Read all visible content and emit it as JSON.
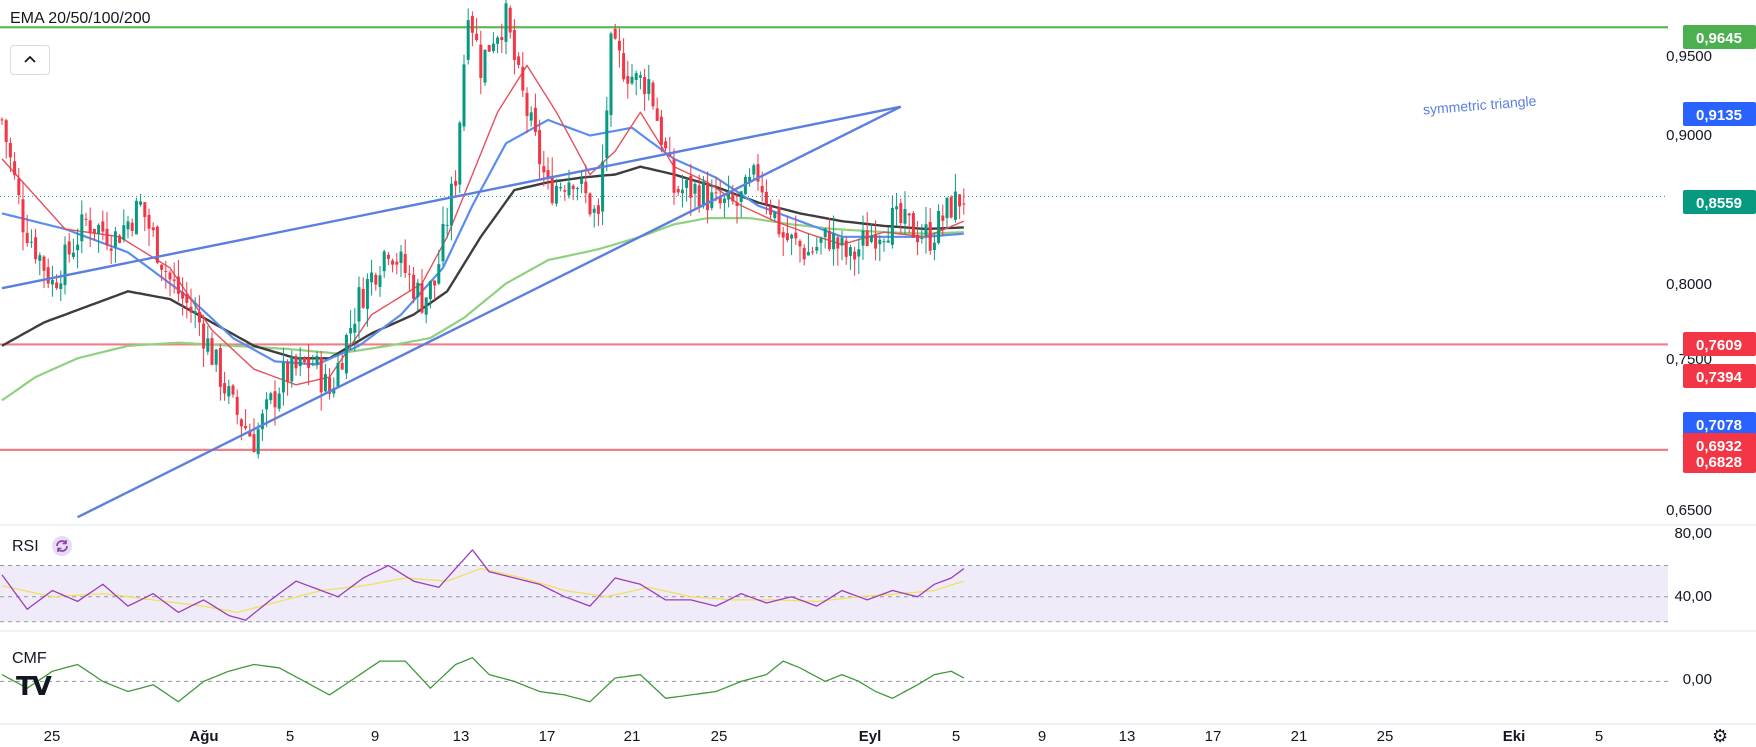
{
  "indicator_label": "EMA 20/50/100/200",
  "rsi_label": "RSI",
  "cmf_label": "CMF",
  "colors": {
    "candle_up": "#089981",
    "candle_down": "#f23645",
    "ema20": "#e5515d",
    "ema50": "#5b8def",
    "ema100": "#3d3d3d",
    "ema200": "#8fd17e",
    "trendline": "#5b7fe0",
    "resistance_green": "#5fb85a",
    "support_red": "#ee7f87",
    "rsi_line": "#9c3cba",
    "rsi_ma": "#f0e060",
    "cmf_line": "#3f9a3a"
  },
  "annotation": "symmetric triangle",
  "price_axis": {
    "ticks": [
      "0,9500",
      "0,9000",
      "0,8000",
      "0,7500",
      "0,6500"
    ],
    "labels": [
      {
        "text": "0,9645",
        "color": "#4caf50"
      },
      {
        "text": "0,9135",
        "color": "#2962ff"
      },
      {
        "text": "0,8559",
        "color": "#089981"
      },
      {
        "text": "0,7609",
        "color": "#f23645"
      },
      {
        "text": "0,7394",
        "color": "#f23645"
      },
      {
        "text": "0,7078",
        "color": "#2962ff"
      },
      {
        "text": "0,6932",
        "color": "#f23645"
      },
      {
        "text": "0,6828",
        "color": "#f23645"
      }
    ]
  },
  "rsi_axis": [
    "80,00",
    "40,00"
  ],
  "cmf_axis": [
    "0,00"
  ],
  "time_axis": [
    "25",
    "Ağu",
    "5",
    "9",
    "13",
    "17",
    "21",
    "25",
    "Eyl",
    "5",
    "9",
    "13",
    "17",
    "21",
    "25",
    "Eki",
    "5"
  ],
  "chart_data": {
    "type": "candlestick",
    "ylim": [
      0.6469,
      0.982
    ],
    "last_price": 0.8559,
    "close_path": [
      [
        0,
        0.905
      ],
      [
        5,
        0.84
      ],
      [
        12,
        0.8
      ],
      [
        20,
        0.84
      ],
      [
        27,
        0.83
      ],
      [
        33,
        0.85
      ],
      [
        40,
        0.802
      ],
      [
        47,
        0.775
      ],
      [
        55,
        0.72
      ],
      [
        60,
        0.7
      ],
      [
        67,
        0.74
      ],
      [
        74,
        0.75
      ],
      [
        78,
        0.73
      ],
      [
        85,
        0.79
      ],
      [
        92,
        0.825
      ],
      [
        100,
        0.79
      ],
      [
        103,
        0.8
      ],
      [
        108,
        0.87
      ],
      [
        111,
        0.98
      ],
      [
        114,
        0.94
      ],
      [
        117,
        0.96
      ],
      [
        120,
        0.97
      ],
      [
        123,
        0.93
      ],
      [
        130,
        0.86
      ],
      [
        136,
        0.87
      ],
      [
        142,
        0.84
      ],
      [
        145,
        0.95
      ],
      [
        151,
        0.93
      ],
      [
        154,
        0.93
      ],
      [
        160,
        0.86
      ],
      [
        166,
        0.86
      ],
      [
        170,
        0.85
      ],
      [
        175,
        0.85
      ],
      [
        180,
        0.87
      ],
      [
        186,
        0.83
      ],
      [
        192,
        0.82
      ],
      [
        197,
        0.83
      ],
      [
        202,
        0.815
      ],
      [
        206,
        0.83
      ],
      [
        212,
        0.84
      ],
      [
        217,
        0.835
      ],
      [
        221,
        0.83
      ],
      [
        226,
        0.85
      ],
      [
        229,
        0.856
      ]
    ],
    "ema_paths": {
      "ema20": [
        [
          0,
          0.88
        ],
        [
          15,
          0.835
        ],
        [
          28,
          0.83
        ],
        [
          40,
          0.81
        ],
        [
          50,
          0.77
        ],
        [
          60,
          0.745
        ],
        [
          70,
          0.735
        ],
        [
          78,
          0.74
        ],
        [
          88,
          0.78
        ],
        [
          100,
          0.8
        ],
        [
          106,
          0.83
        ],
        [
          112,
          0.87
        ],
        [
          118,
          0.91
        ],
        [
          125,
          0.94
        ],
        [
          132,
          0.91
        ],
        [
          140,
          0.87
        ],
        [
          146,
          0.885
        ],
        [
          152,
          0.91
        ],
        [
          160,
          0.875
        ],
        [
          168,
          0.865
        ],
        [
          176,
          0.85
        ],
        [
          184,
          0.84
        ],
        [
          192,
          0.832
        ],
        [
          200,
          0.825
        ],
        [
          210,
          0.833
        ],
        [
          220,
          0.83
        ],
        [
          229,
          0.84
        ]
      ],
      "ema50": [
        [
          0,
          0.845
        ],
        [
          15,
          0.835
        ],
        [
          30,
          0.82
        ],
        [
          45,
          0.79
        ],
        [
          55,
          0.765
        ],
        [
          65,
          0.75
        ],
        [
          75,
          0.748
        ],
        [
          85,
          0.76
        ],
        [
          95,
          0.78
        ],
        [
          105,
          0.81
        ],
        [
          112,
          0.85
        ],
        [
          120,
          0.89
        ],
        [
          130,
          0.905
        ],
        [
          140,
          0.895
        ],
        [
          150,
          0.9
        ],
        [
          160,
          0.88
        ],
        [
          170,
          0.868
        ],
        [
          180,
          0.85
        ],
        [
          190,
          0.84
        ],
        [
          200,
          0.83
        ],
        [
          210,
          0.83
        ],
        [
          220,
          0.83
        ],
        [
          229,
          0.832
        ]
      ],
      "ema100": [
        [
          0,
          0.76
        ],
        [
          10,
          0.775
        ],
        [
          20,
          0.785
        ],
        [
          30,
          0.795
        ],
        [
          40,
          0.79
        ],
        [
          50,
          0.775
        ],
        [
          60,
          0.76
        ],
        [
          70,
          0.752
        ],
        [
          78,
          0.752
        ],
        [
          88,
          0.768
        ],
        [
          98,
          0.78
        ],
        [
          106,
          0.795
        ],
        [
          114,
          0.83
        ],
        [
          122,
          0.86
        ],
        [
          130,
          0.865
        ],
        [
          138,
          0.868
        ],
        [
          146,
          0.87
        ],
        [
          152,
          0.875
        ],
        [
          160,
          0.87
        ],
        [
          170,
          0.862
        ],
        [
          180,
          0.852
        ],
        [
          190,
          0.845
        ],
        [
          200,
          0.84
        ],
        [
          210,
          0.837
        ],
        [
          220,
          0.835
        ],
        [
          229,
          0.836
        ]
      ],
      "ema200": [
        [
          0,
          0.725
        ],
        [
          8,
          0.74
        ],
        [
          18,
          0.752
        ],
        [
          30,
          0.76
        ],
        [
          42,
          0.762
        ],
        [
          55,
          0.76
        ],
        [
          68,
          0.758
        ],
        [
          80,
          0.755
        ],
        [
          92,
          0.76
        ],
        [
          102,
          0.765
        ],
        [
          110,
          0.778
        ],
        [
          120,
          0.8
        ],
        [
          130,
          0.815
        ],
        [
          142,
          0.822
        ],
        [
          152,
          0.83
        ],
        [
          160,
          0.838
        ],
        [
          168,
          0.842
        ],
        [
          178,
          0.842
        ],
        [
          188,
          0.838
        ],
        [
          198,
          0.835
        ],
        [
          210,
          0.833
        ],
        [
          220,
          0.832
        ],
        [
          229,
          0.833
        ]
      ]
    },
    "trendlines": [
      {
        "from": [
          0,
          0.797
        ],
        "to": [
          214,
          0.9135
        ]
      },
      {
        "from": [
          18,
          0.65
        ],
        "to": [
          214,
          0.9135
        ]
      }
    ],
    "horizontal_levels": {
      "resistance": [
        0.9645
      ],
      "support": [
        0.7609,
        0.6932
      ]
    },
    "rsi": {
      "ylim": [
        28,
        92
      ],
      "bands": [
        68,
        48,
        32
      ],
      "path": [
        [
          0,
          62
        ],
        [
          6,
          40
        ],
        [
          12,
          52
        ],
        [
          18,
          45
        ],
        [
          24,
          56
        ],
        [
          30,
          42
        ],
        [
          36,
          50
        ],
        [
          42,
          38
        ],
        [
          48,
          46
        ],
        [
          54,
          36
        ],
        [
          58,
          33
        ],
        [
          64,
          46
        ],
        [
          70,
          58
        ],
        [
          76,
          52
        ],
        [
          80,
          48
        ],
        [
          86,
          60
        ],
        [
          92,
          68
        ],
        [
          98,
          58
        ],
        [
          104,
          54
        ],
        [
          108,
          66
        ],
        [
          112,
          78
        ],
        [
          116,
          64
        ],
        [
          122,
          60
        ],
        [
          128,
          56
        ],
        [
          134,
          48
        ],
        [
          140,
          42
        ],
        [
          146,
          60
        ],
        [
          152,
          56
        ],
        [
          158,
          46
        ],
        [
          164,
          46
        ],
        [
          170,
          42
        ],
        [
          176,
          50
        ],
        [
          182,
          44
        ],
        [
          188,
          48
        ],
        [
          194,
          42
        ],
        [
          200,
          52
        ],
        [
          206,
          46
        ],
        [
          212,
          52
        ],
        [
          218,
          48
        ],
        [
          222,
          56
        ],
        [
          226,
          60
        ],
        [
          229,
          66
        ]
      ],
      "ma_path": [
        [
          0,
          55
        ],
        [
          12,
          48
        ],
        [
          24,
          50
        ],
        [
          36,
          46
        ],
        [
          48,
          42
        ],
        [
          56,
          38
        ],
        [
          66,
          45
        ],
        [
          76,
          52
        ],
        [
          86,
          55
        ],
        [
          96,
          60
        ],
        [
          106,
          58
        ],
        [
          114,
          66
        ],
        [
          124,
          60
        ],
        [
          134,
          52
        ],
        [
          144,
          48
        ],
        [
          154,
          54
        ],
        [
          164,
          48
        ],
        [
          174,
          46
        ],
        [
          184,
          46
        ],
        [
          194,
          45
        ],
        [
          204,
          48
        ],
        [
          214,
          50
        ],
        [
          222,
          52
        ],
        [
          229,
          58
        ]
      ]
    },
    "cmf": {
      "ylim": [
        -0.12,
        0.14
      ],
      "zero_line": 0,
      "path": [
        [
          0,
          0.02
        ],
        [
          6,
          -0.02
        ],
        [
          12,
          0.03
        ],
        [
          18,
          0.05
        ],
        [
          24,
          0.0
        ],
        [
          30,
          -0.03
        ],
        [
          36,
          -0.01
        ],
        [
          42,
          -0.06
        ],
        [
          48,
          0.0
        ],
        [
          54,
          0.03
        ],
        [
          60,
          0.05
        ],
        [
          66,
          0.04
        ],
        [
          72,
          0.0
        ],
        [
          78,
          -0.04
        ],
        [
          84,
          0.01
        ],
        [
          90,
          0.06
        ],
        [
          96,
          0.06
        ],
        [
          102,
          -0.02
        ],
        [
          108,
          0.05
        ],
        [
          112,
          0.07
        ],
        [
          116,
          0.02
        ],
        [
          122,
          0.0
        ],
        [
          128,
          -0.03
        ],
        [
          134,
          -0.04
        ],
        [
          140,
          -0.06
        ],
        [
          146,
          0.01
        ],
        [
          152,
          0.02
        ],
        [
          158,
          -0.05
        ],
        [
          164,
          -0.04
        ],
        [
          170,
          -0.03
        ],
        [
          176,
          0.0
        ],
        [
          182,
          0.02
        ],
        [
          186,
          0.06
        ],
        [
          190,
          0.04
        ],
        [
          196,
          0.0
        ],
        [
          200,
          0.02
        ],
        [
          204,
          0.0
        ],
        [
          208,
          -0.03
        ],
        [
          212,
          -0.05
        ],
        [
          218,
          -0.01
        ],
        [
          222,
          0.02
        ],
        [
          226,
          0.03
        ],
        [
          229,
          0.01
        ]
      ]
    }
  }
}
